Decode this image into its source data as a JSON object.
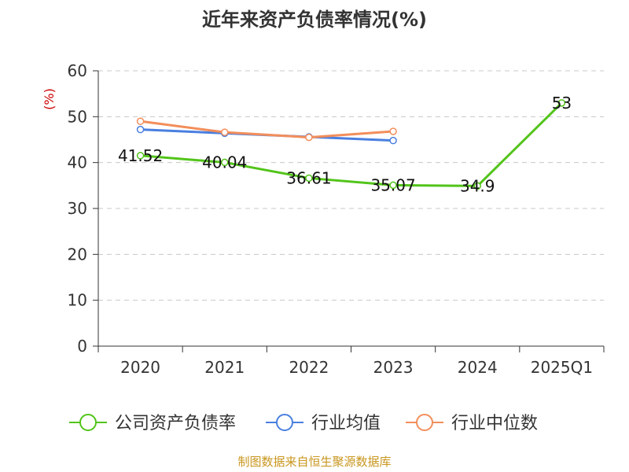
{
  "chart_data": {
    "type": "line",
    "title": "近年来资产负债率情况(%)",
    "ylabel": "(%)",
    "ylim": [
      0,
      60
    ],
    "yticks": [
      0,
      10,
      20,
      30,
      40,
      50,
      60
    ],
    "categories": [
      "2020",
      "2021",
      "2022",
      "2023",
      "2024",
      "2025Q1"
    ],
    "grid": true,
    "legend_position": "bottom",
    "series": [
      {
        "name": "公司资产负债率",
        "color": "#52c41a",
        "values": [
          41.52,
          40.04,
          36.61,
          35.07,
          34.9,
          53
        ],
        "labels": [
          "41.52",
          "40.04",
          "36.61",
          "35.07",
          "34.9",
          "53"
        ]
      },
      {
        "name": "行业均值",
        "color": "#4a7fe0",
        "values": [
          47.2,
          46.4,
          45.6,
          44.8,
          null,
          null
        ]
      },
      {
        "name": "行业中位数",
        "color": "#f28e5b",
        "values": [
          49.0,
          46.6,
          45.5,
          46.8,
          null,
          null
        ]
      }
    ],
    "source": "制图数据来自恒生聚源数据库"
  }
}
